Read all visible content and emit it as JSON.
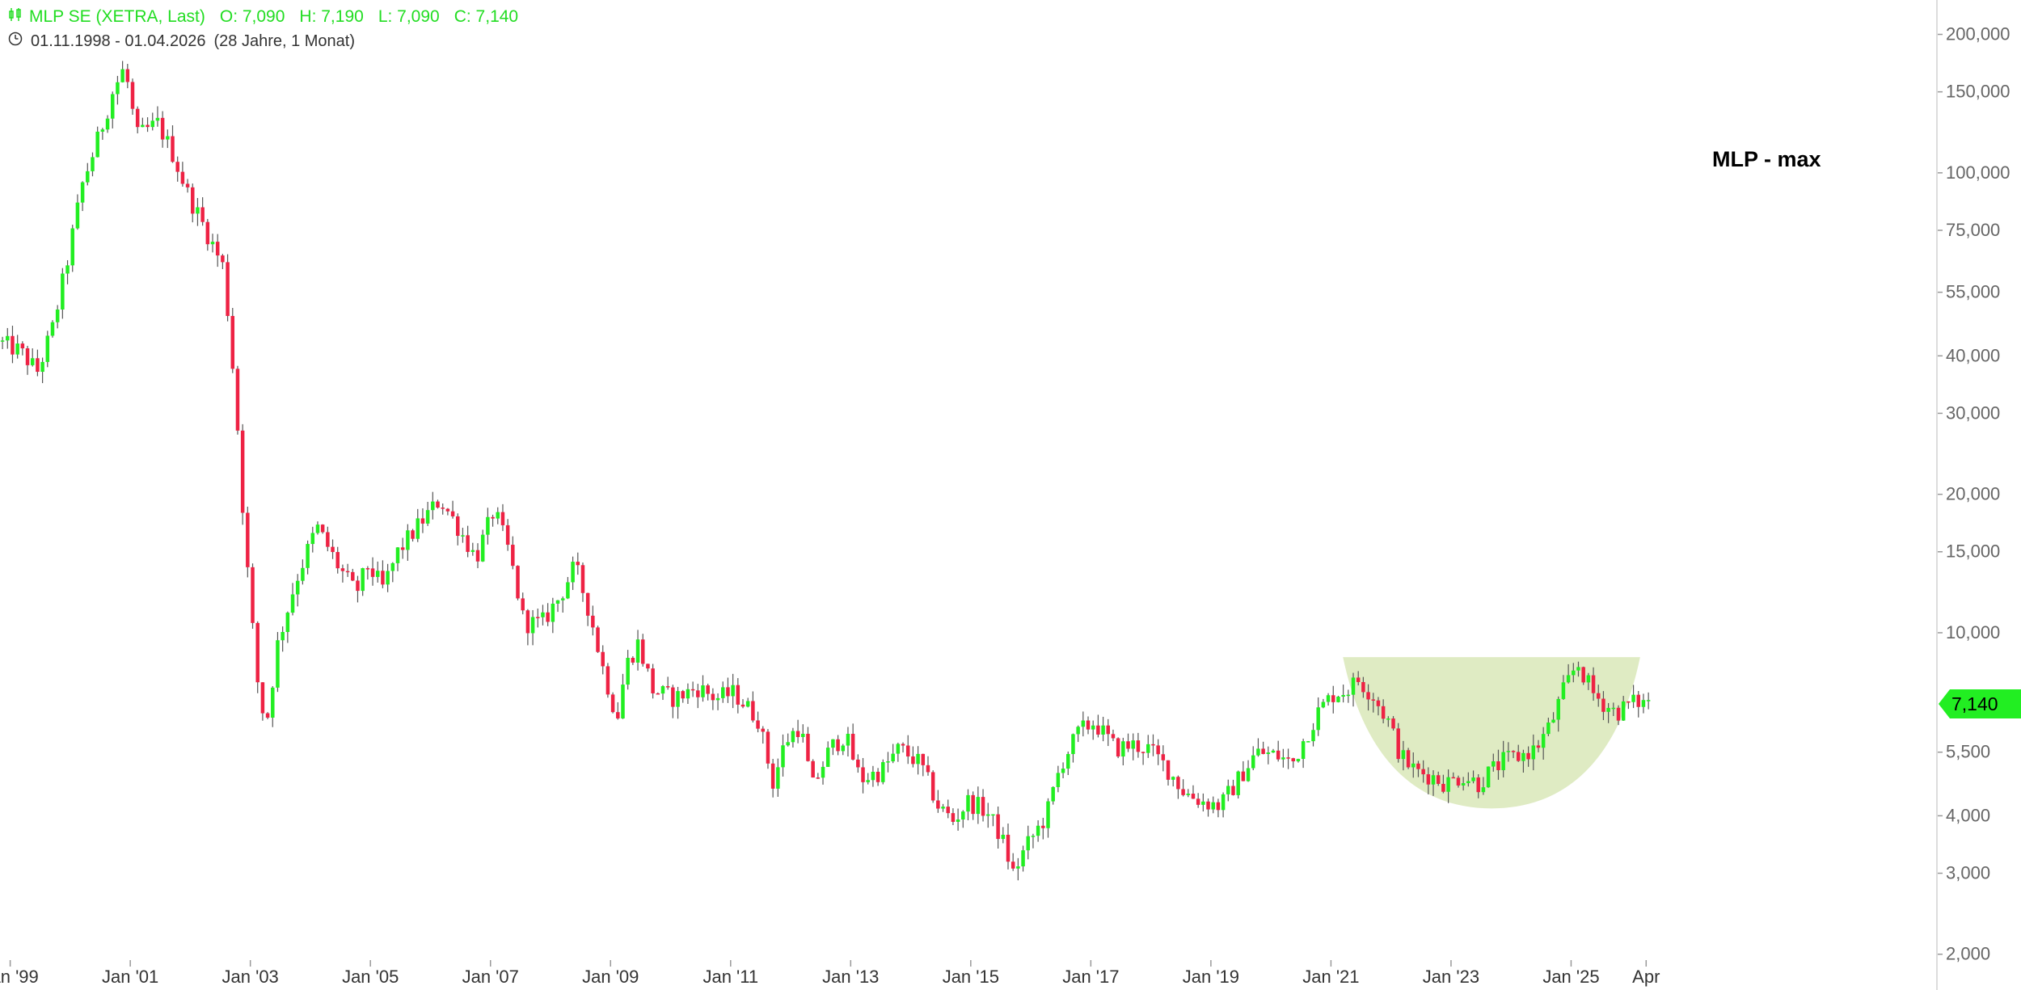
{
  "legend": {
    "instrument": "MLP SE (XETRA, Last)",
    "open": "O: 7,090",
    "high": "H: 7,190",
    "low": "L: 7,090",
    "close": "C: 7,140"
  },
  "range": {
    "dates": "01.11.1998 - 01.04.2026",
    "span": "(28 Jahre, 1 Monat)"
  },
  "last_price_label": "7,140",
  "chart_data": {
    "type": "candlestick",
    "title": "MLP - max",
    "y_scale": "log",
    "ylim": [
      1.85,
      230
    ],
    "xlim": [
      1998.83,
      2026.3
    ],
    "y_ticks": [
      {
        "value": 200,
        "label": "200,000"
      },
      {
        "value": 150,
        "label": "150,000"
      },
      {
        "value": 100,
        "label": "100,000"
      },
      {
        "value": 75,
        "label": "75,000"
      },
      {
        "value": 55,
        "label": "55,000"
      },
      {
        "value": 40,
        "label": "40,000"
      },
      {
        "value": 30,
        "label": "30,000"
      },
      {
        "value": 20,
        "label": "20,000"
      },
      {
        "value": 15,
        "label": "15,000"
      },
      {
        "value": 10,
        "label": "10,000"
      },
      {
        "value": 5.5,
        "label": "5,500"
      },
      {
        "value": 4,
        "label": "4,000"
      },
      {
        "value": 3,
        "label": "3,000"
      },
      {
        "value": 2,
        "label": "2,000"
      }
    ],
    "x_ticks": [
      {
        "value": 1999.0,
        "label": "Jan '99"
      },
      {
        "value": 2001.0,
        "label": "Jan '01"
      },
      {
        "value": 2003.0,
        "label": "Jan '03"
      },
      {
        "value": 2005.0,
        "label": "Jan '05"
      },
      {
        "value": 2007.0,
        "label": "Jan '07"
      },
      {
        "value": 2009.0,
        "label": "Jan '09"
      },
      {
        "value": 2011.0,
        "label": "Jan '11"
      },
      {
        "value": 2013.0,
        "label": "Jan '13"
      },
      {
        "value": 2015.0,
        "label": "Jan '15"
      },
      {
        "value": 2017.0,
        "label": "Jan '17"
      },
      {
        "value": 2019.0,
        "label": "Jan '19"
      },
      {
        "value": 2021.0,
        "label": "Jan '21"
      },
      {
        "value": 2023.0,
        "label": "Jan '23"
      },
      {
        "value": 2025.0,
        "label": "Jan '25"
      },
      {
        "value": 2026.25,
        "label": "Apr"
      }
    ],
    "anchors": [
      [
        1998.83,
        43
      ],
      [
        1999.2,
        41
      ],
      [
        1999.5,
        37
      ],
      [
        1999.75,
        46
      ],
      [
        2000.0,
        65
      ],
      [
        2000.25,
        95
      ],
      [
        2000.5,
        118
      ],
      [
        2000.75,
        150
      ],
      [
        2000.95,
        170
      ],
      [
        2001.15,
        120
      ],
      [
        2001.5,
        128
      ],
      [
        2001.75,
        110
      ],
      [
        2002.0,
        90
      ],
      [
        2002.3,
        75
      ],
      [
        2002.6,
        62
      ],
      [
        2002.8,
        32
      ],
      [
        2002.95,
        16
      ],
      [
        2003.15,
        8
      ],
      [
        2003.3,
        6.2
      ],
      [
        2003.5,
        9.5
      ],
      [
        2003.8,
        13
      ],
      [
        2004.15,
        17
      ],
      [
        2004.5,
        14
      ],
      [
        2004.8,
        12.2
      ],
      [
        2005.0,
        14
      ],
      [
        2005.25,
        12.5
      ],
      [
        2005.5,
        15
      ],
      [
        2005.9,
        17.5
      ],
      [
        2006.2,
        19.5
      ],
      [
        2006.5,
        17
      ],
      [
        2006.8,
        14.5
      ],
      [
        2007.1,
        18.5
      ],
      [
        2007.35,
        15
      ],
      [
        2007.6,
        10.5
      ],
      [
        2007.9,
        10.5
      ],
      [
        2008.2,
        12
      ],
      [
        2008.45,
        14
      ],
      [
        2008.7,
        11
      ],
      [
        2008.9,
        8.5
      ],
      [
        2009.15,
        6.5
      ],
      [
        2009.3,
        8.5
      ],
      [
        2009.5,
        9.5
      ],
      [
        2009.75,
        7.5
      ],
      [
        2010.1,
        7.2
      ],
      [
        2010.5,
        7.6
      ],
      [
        2010.8,
        7.2
      ],
      [
        2011.1,
        7.4
      ],
      [
        2011.5,
        6.5
      ],
      [
        2011.75,
        4.7
      ],
      [
        2011.95,
        5.8
      ],
      [
        2012.2,
        6.3
      ],
      [
        2012.4,
        4.6
      ],
      [
        2012.7,
        5.6
      ],
      [
        2012.95,
        6.0
      ],
      [
        2013.2,
        4.8
      ],
      [
        2013.55,
        5.0
      ],
      [
        2013.85,
        5.6
      ],
      [
        2014.2,
        5.2
      ],
      [
        2014.5,
        4.2
      ],
      [
        2014.75,
        3.9
      ],
      [
        2015.0,
        4.3
      ],
      [
        2015.3,
        4.1
      ],
      [
        2015.55,
        3.6
      ],
      [
        2015.75,
        3.0
      ],
      [
        2015.95,
        3.4
      ],
      [
        2016.3,
        4.0
      ],
      [
        2016.55,
        5.2
      ],
      [
        2016.85,
        6.1
      ],
      [
        2017.1,
        6.4
      ],
      [
        2017.45,
        5.6
      ],
      [
        2017.75,
        5.7
      ],
      [
        2018.0,
        5.6
      ],
      [
        2018.3,
        5.1
      ],
      [
        2018.6,
        4.5
      ],
      [
        2018.9,
        4.3
      ],
      [
        2019.2,
        4.2
      ],
      [
        2019.5,
        4.8
      ],
      [
        2019.8,
        5.5
      ],
      [
        2020.15,
        5.4
      ],
      [
        2020.4,
        5.2
      ],
      [
        2020.6,
        5.9
      ],
      [
        2020.85,
        6.8
      ],
      [
        2021.1,
        7.4
      ],
      [
        2021.3,
        7.5
      ],
      [
        2021.5,
        7.9
      ],
      [
        2021.75,
        7.3
      ],
      [
        2022.0,
        6.4
      ],
      [
        2022.2,
        5.4
      ],
      [
        2022.45,
        5.0
      ],
      [
        2022.7,
        4.9
      ],
      [
        2022.95,
        4.7
      ],
      [
        2023.25,
        4.9
      ],
      [
        2023.5,
        4.7
      ],
      [
        2023.7,
        5.0
      ],
      [
        2023.95,
        5.3
      ],
      [
        2024.2,
        5.4
      ],
      [
        2024.45,
        5.6
      ],
      [
        2024.7,
        6.3
      ],
      [
        2024.9,
        7.4
      ],
      [
        2025.15,
        8.6
      ],
      [
        2025.4,
        7.4
      ],
      [
        2025.6,
        7.0
      ],
      [
        2025.8,
        6.7
      ],
      [
        2026.0,
        7.0
      ],
      [
        2026.2,
        7.1
      ],
      [
        2026.25,
        7.14
      ]
    ],
    "highlight_zone": {
      "type": "cup",
      "x_start": 2021.2,
      "x_end": 2026.15,
      "top": 8.85,
      "bottom": 4.15,
      "color": "#d9e8b8"
    },
    "last_close": 7.14,
    "colors": {
      "up": "#22ee22",
      "down": "#ee2244",
      "wick": "#555555"
    }
  }
}
